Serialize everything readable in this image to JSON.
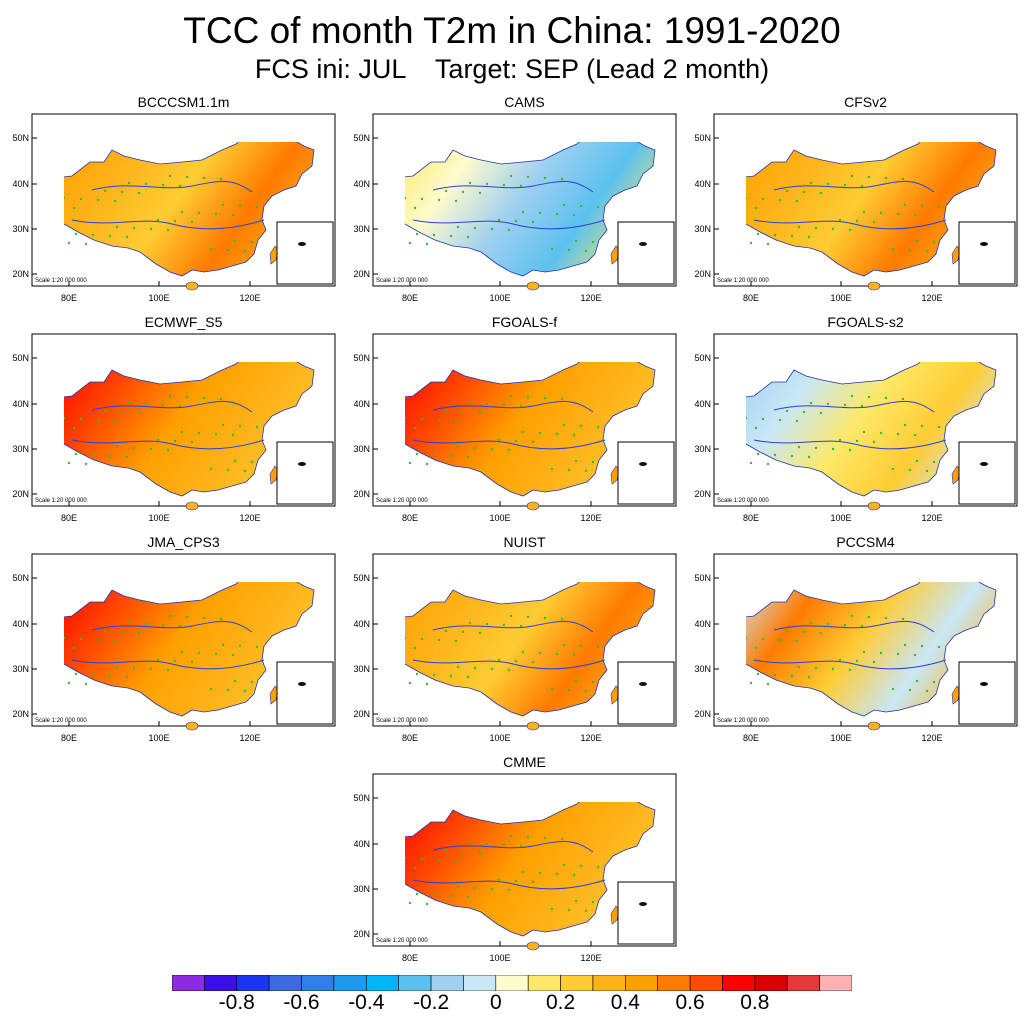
{
  "title": "TCC of month T2m in China: 1991-2020",
  "subtitle": "FCS ini: JUL    Target: SEP (Lead 2 month)",
  "scale_note": "Scale 1:20 000 000",
  "x_ticks": [
    "80E",
    "100E",
    "120E"
  ],
  "y_ticks": [
    "50N",
    "40N",
    "30N",
    "20N"
  ],
  "panels": [
    {
      "name": "BCCCSM1.1m",
      "pattern": "warm"
    },
    {
      "name": "CAMS",
      "pattern": "cool-east"
    },
    {
      "name": "CFSv2",
      "pattern": "warm"
    },
    {
      "name": "ECMWF_S5",
      "pattern": "hot-west"
    },
    {
      "name": "FGOALS-f",
      "pattern": "hot-west"
    },
    {
      "name": "FGOALS-s2",
      "pattern": "cool-west"
    },
    {
      "name": "JMA_CPS3",
      "pattern": "hot-west"
    },
    {
      "name": "NUIST",
      "pattern": "warm"
    },
    {
      "name": "PCCSM4",
      "pattern": "mixed"
    },
    {
      "name": "CMME",
      "pattern": "hot-west"
    }
  ],
  "colorbar": {
    "colors": [
      "#8b2be2",
      "#3a0fe8",
      "#1a36f0",
      "#3d6ae0",
      "#2f7fe8",
      "#1e9af2",
      "#00b4ff",
      "#5bc1ef",
      "#9fd0f0",
      "#c9e7f6",
      "#fffbcc",
      "#fde867",
      "#ffcc33",
      "#ffb319",
      "#ffa000",
      "#ff7a00",
      "#ff4b00",
      "#ff0000",
      "#d80000",
      "#e63a3a",
      "#ffb0b0"
    ],
    "labels": [
      "-0.8",
      "-0.6",
      "-0.4",
      "-0.2",
      "0",
      "0.2",
      "0.4",
      "0.6",
      "0.8"
    ]
  }
}
